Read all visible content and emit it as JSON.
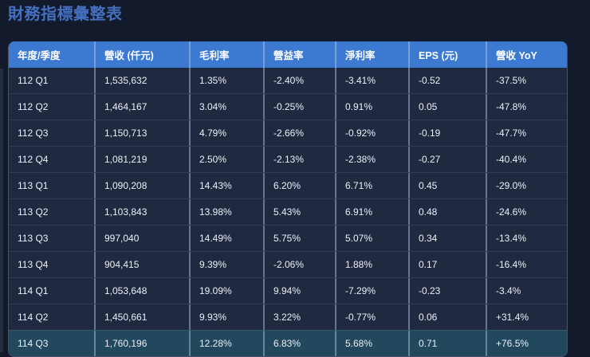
{
  "page": {
    "title": "財務指標彙整表"
  },
  "colors": {
    "page_bg": "#121a2c",
    "header_bg": "#3c7ad2",
    "row_bg": "#1f2940",
    "highlight_row_bg": "#21485c",
    "title_color": "#4470bf",
    "header_text": "#ffffff",
    "cell_text": "#edf1f7",
    "column_separator": "#acc3e0"
  },
  "chart_data": {
    "type": "table",
    "title": "財務指標彙整表",
    "columns": [
      "年度/季度",
      "營收 (仟元)",
      "毛利率",
      "營益率",
      "淨利率",
      "EPS (元)",
      "營收 YoY"
    ],
    "rows": [
      [
        "112 Q1",
        "1,535,632",
        "1.35%",
        "-2.40%",
        "-3.41%",
        "-0.52",
        "-37.5%"
      ],
      [
        "112 Q2",
        "1,464,167",
        "3.04%",
        "-0.25%",
        "0.91%",
        "0.05",
        "-47.8%"
      ],
      [
        "112 Q3",
        "1,150,713",
        "4.79%",
        "-2.66%",
        "-0.92%",
        "-0.19",
        "-47.7%"
      ],
      [
        "112 Q4",
        "1,081,219",
        "2.50%",
        "-2.13%",
        "-2.38%",
        "-0.27",
        "-40.4%"
      ],
      [
        "113 Q1",
        "1,090,208",
        "14.43%",
        "6.20%",
        "6.71%",
        "0.45",
        "-29.0%"
      ],
      [
        "113 Q2",
        "1,103,843",
        "13.98%",
        "5.43%",
        "6.91%",
        "0.48",
        "-24.6%"
      ],
      [
        "113 Q3",
        "997,040",
        "14.49%",
        "5.75%",
        "5.07%",
        "0.34",
        "-13.4%"
      ],
      [
        "113 Q4",
        "904,415",
        "9.39%",
        "-2.06%",
        "1.88%",
        "0.17",
        "-16.4%"
      ],
      [
        "114 Q1",
        "1,053,648",
        "19.09%",
        "9.94%",
        "-7.29%",
        "-0.23",
        "-3.4%"
      ],
      [
        "114 Q2",
        "1,450,661",
        "9.93%",
        "3.22%",
        "-0.77%",
        "0.06",
        "+31.4%"
      ],
      [
        "114 Q3",
        "1,760,196",
        "12.28%",
        "6.83%",
        "5.68%",
        "0.71",
        "+76.5%"
      ]
    ],
    "highlighted_row_index": 10
  }
}
